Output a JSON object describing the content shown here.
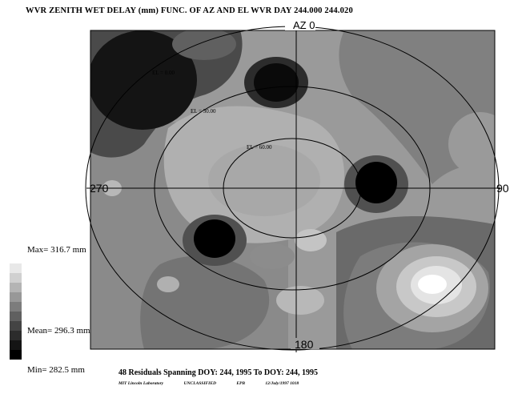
{
  "chart_data": {
    "type": "heatmap",
    "title": "WVR ZENITH WET DELAY (mm)   FUNC. OF AZ AND EL  WVR  DAY 244.000 244.020",
    "az_labels": {
      "top": "AZ 0",
      "right": "90",
      "bottom": "180",
      "left": "270"
    },
    "el_labels": [
      "EL = 0.00",
      "EL = 30.00",
      "EL = 60.00"
    ],
    "stats": {
      "max": "Max= 316.7 mm",
      "mean": "Mean= 296.3 mm",
      "min": "Min= 282.5 mm"
    },
    "max_value": 316.7,
    "mean_value": 296.3,
    "min_value": 282.5,
    "units": "mm",
    "legend_colors": [
      "#ffffff",
      "#e8e8e8",
      "#d0d0d0",
      "#b4b4b4",
      "#989898",
      "#7c7c7c",
      "#606060",
      "#444444",
      "#2c2c2c",
      "#141414",
      "#000000"
    ]
  },
  "footer": {
    "summary": "48 Residuals Spanning DOY: 244, 1995 To DOY: 244, 1995",
    "credits": [
      "MIT Lincoln Laboratory",
      "UNCLASSIFIED",
      "EPB",
      "12/July/1997 1018"
    ]
  }
}
